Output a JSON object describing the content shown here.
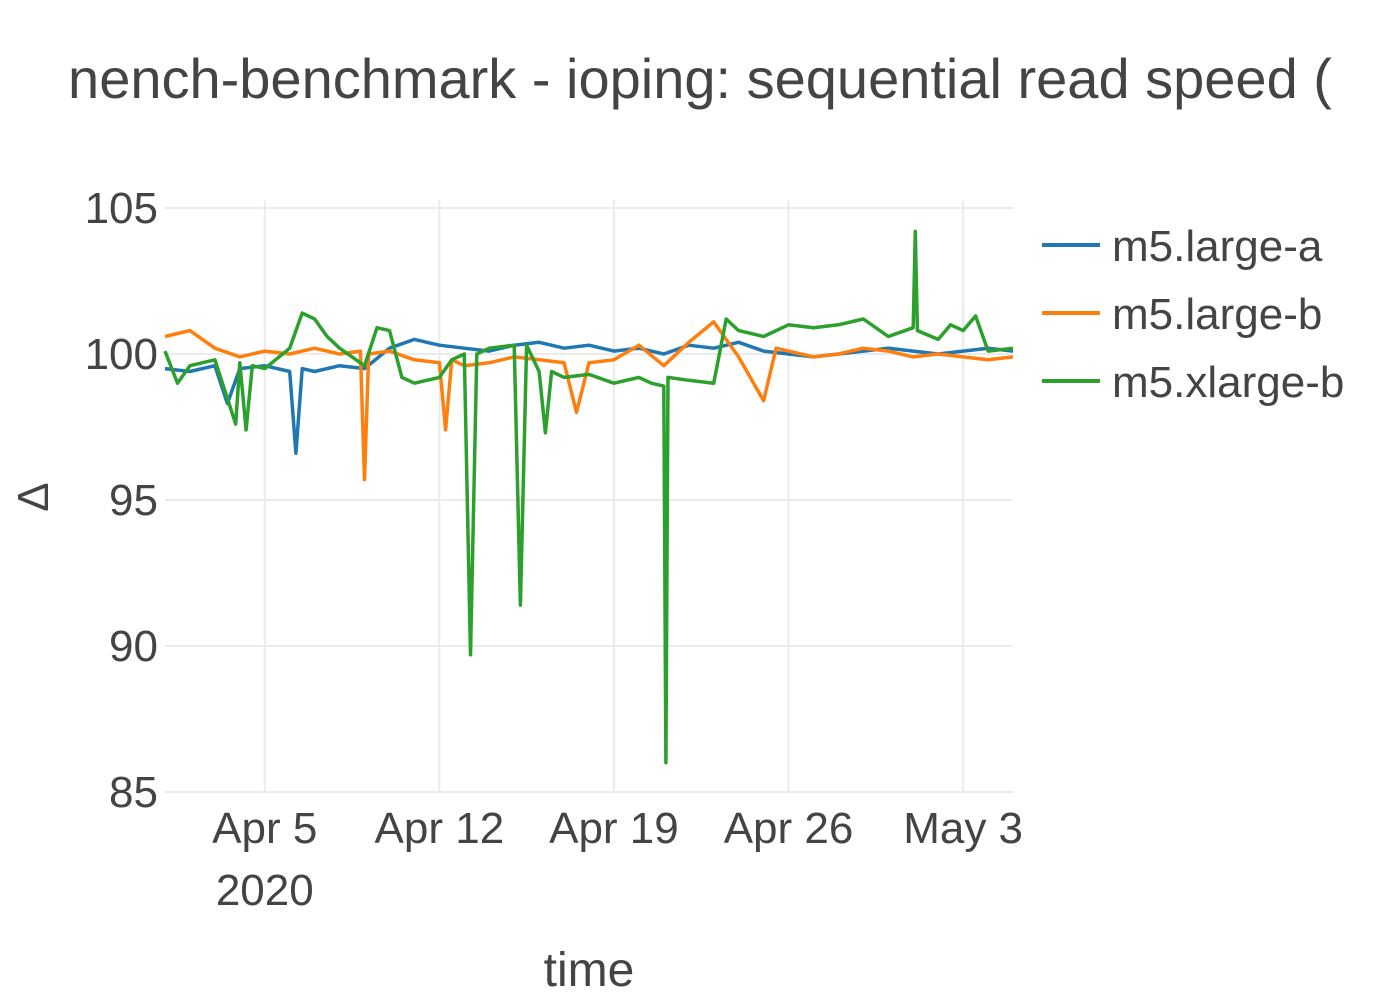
{
  "chart_data": {
    "type": "line",
    "title": "nench-benchmark - ioping: sequential read speed (",
    "xlabel": "time",
    "ylabel": "Δ",
    "x_range": [
      "2020-04-01",
      "2020-05-05"
    ],
    "ylim": [
      85,
      105
    ],
    "yticks": [
      85,
      90,
      95,
      100,
      105
    ],
    "xticks": [
      {
        "date": "2020-04-05",
        "label": "Apr 5",
        "sublabel": "2020"
      },
      {
        "date": "2020-04-12",
        "label": "Apr 12",
        "sublabel": ""
      },
      {
        "date": "2020-04-19",
        "label": "Apr 19",
        "sublabel": ""
      },
      {
        "date": "2020-04-26",
        "label": "Apr 26",
        "sublabel": ""
      },
      {
        "date": "2020-05-03",
        "label": "May 3",
        "sublabel": ""
      }
    ],
    "grid": true,
    "legend_position": "right",
    "series": [
      {
        "name": "m5.large-a",
        "color": "#1f77b4",
        "points": [
          [
            "2020-04-01",
            99.5
          ],
          [
            "2020-04-02",
            99.4
          ],
          [
            "2020-04-03",
            99.6
          ],
          [
            "2020-04-03 12:00",
            98.3
          ],
          [
            "2020-04-04",
            99.5
          ],
          [
            "2020-04-05",
            99.6
          ],
          [
            "2020-04-06",
            99.4
          ],
          [
            "2020-04-06 06:00",
            96.6
          ],
          [
            "2020-04-06 12:00",
            99.5
          ],
          [
            "2020-04-07",
            99.4
          ],
          [
            "2020-04-08",
            99.6
          ],
          [
            "2020-04-09",
            99.5
          ],
          [
            "2020-04-10",
            100.2
          ],
          [
            "2020-04-11",
            100.5
          ],
          [
            "2020-04-12",
            100.3
          ],
          [
            "2020-04-13",
            100.2
          ],
          [
            "2020-04-14",
            100.1
          ],
          [
            "2020-04-15",
            100.3
          ],
          [
            "2020-04-16",
            100.4
          ],
          [
            "2020-04-17",
            100.2
          ],
          [
            "2020-04-18",
            100.3
          ],
          [
            "2020-04-19",
            100.1
          ],
          [
            "2020-04-20",
            100.2
          ],
          [
            "2020-04-21",
            100.0
          ],
          [
            "2020-04-22",
            100.3
          ],
          [
            "2020-04-23",
            100.2
          ],
          [
            "2020-04-24",
            100.4
          ],
          [
            "2020-04-25",
            100.1
          ],
          [
            "2020-04-26",
            100.0
          ],
          [
            "2020-04-27",
            99.9
          ],
          [
            "2020-04-28",
            100.0
          ],
          [
            "2020-04-29",
            100.1
          ],
          [
            "2020-04-30",
            100.2
          ],
          [
            "2020-05-01",
            100.1
          ],
          [
            "2020-05-02",
            100.0
          ],
          [
            "2020-05-03",
            100.1
          ],
          [
            "2020-05-04",
            100.2
          ],
          [
            "2020-05-05",
            100.1
          ]
        ]
      },
      {
        "name": "m5.large-b",
        "color": "#ff7f0e",
        "points": [
          [
            "2020-04-01",
            100.6
          ],
          [
            "2020-04-02",
            100.8
          ],
          [
            "2020-04-03",
            100.2
          ],
          [
            "2020-04-04",
            99.9
          ],
          [
            "2020-04-05",
            100.1
          ],
          [
            "2020-04-06",
            100.0
          ],
          [
            "2020-04-07",
            100.2
          ],
          [
            "2020-04-08",
            100.0
          ],
          [
            "2020-04-08 20:00",
            100.1
          ],
          [
            "2020-04-09",
            95.7
          ],
          [
            "2020-04-09 04:00",
            100.0
          ],
          [
            "2020-04-10",
            100.1
          ],
          [
            "2020-04-11",
            99.8
          ],
          [
            "2020-04-12",
            99.7
          ],
          [
            "2020-04-12 06:00",
            97.4
          ],
          [
            "2020-04-12 12:00",
            99.8
          ],
          [
            "2020-04-13",
            99.6
          ],
          [
            "2020-04-14",
            99.7
          ],
          [
            "2020-04-15",
            99.9
          ],
          [
            "2020-04-16",
            99.8
          ],
          [
            "2020-04-17",
            99.7
          ],
          [
            "2020-04-17 12:00",
            98.0
          ],
          [
            "2020-04-18",
            99.7
          ],
          [
            "2020-04-19",
            99.8
          ],
          [
            "2020-04-20",
            100.3
          ],
          [
            "2020-04-21",
            99.6
          ],
          [
            "2020-04-22",
            100.4
          ],
          [
            "2020-04-23",
            101.1
          ],
          [
            "2020-04-24",
            99.9
          ],
          [
            "2020-04-25",
            98.4
          ],
          [
            "2020-04-25 12:00",
            100.2
          ],
          [
            "2020-04-26",
            100.1
          ],
          [
            "2020-04-27",
            99.9
          ],
          [
            "2020-04-28",
            100.0
          ],
          [
            "2020-04-29",
            100.2
          ],
          [
            "2020-04-30",
            100.1
          ],
          [
            "2020-05-01",
            99.9
          ],
          [
            "2020-05-02",
            100.0
          ],
          [
            "2020-05-03",
            99.9
          ],
          [
            "2020-05-04",
            99.8
          ],
          [
            "2020-05-05",
            99.9
          ]
        ]
      },
      {
        "name": "m5.xlarge-b",
        "color": "#2ca02c",
        "points": [
          [
            "2020-04-01",
            100.1
          ],
          [
            "2020-04-01 12:00",
            99.0
          ],
          [
            "2020-04-02",
            99.6
          ],
          [
            "2020-04-03",
            99.8
          ],
          [
            "2020-04-03 20:00",
            97.6
          ],
          [
            "2020-04-04",
            99.7
          ],
          [
            "2020-04-04 06:00",
            97.4
          ],
          [
            "2020-04-04 12:00",
            99.6
          ],
          [
            "2020-04-05",
            99.5
          ],
          [
            "2020-04-06",
            100.2
          ],
          [
            "2020-04-06 12:00",
            101.4
          ],
          [
            "2020-04-07",
            101.2
          ],
          [
            "2020-04-07 12:00",
            100.6
          ],
          [
            "2020-04-08",
            100.2
          ],
          [
            "2020-04-09",
            99.6
          ],
          [
            "2020-04-09 12:00",
            100.9
          ],
          [
            "2020-04-10",
            100.8
          ],
          [
            "2020-04-10 12:00",
            99.2
          ],
          [
            "2020-04-11",
            99.0
          ],
          [
            "2020-04-12",
            99.2
          ],
          [
            "2020-04-12 12:00",
            99.8
          ],
          [
            "2020-04-13",
            100.0
          ],
          [
            "2020-04-13 06:00",
            89.7
          ],
          [
            "2020-04-13 12:00",
            100.0
          ],
          [
            "2020-04-14",
            100.2
          ],
          [
            "2020-04-15",
            100.3
          ],
          [
            "2020-04-15 06:00",
            91.4
          ],
          [
            "2020-04-15 12:00",
            100.3
          ],
          [
            "2020-04-16",
            99.4
          ],
          [
            "2020-04-16 06:00",
            97.3
          ],
          [
            "2020-04-16 12:00",
            99.4
          ],
          [
            "2020-04-17",
            99.2
          ],
          [
            "2020-04-18",
            99.3
          ],
          [
            "2020-04-19",
            99.0
          ],
          [
            "2020-04-20",
            99.2
          ],
          [
            "2020-04-20 12:00",
            99.0
          ],
          [
            "2020-04-21",
            98.9
          ],
          [
            "2020-04-21 02:00",
            86.0
          ],
          [
            "2020-04-21 04:00",
            99.2
          ],
          [
            "2020-04-22",
            99.1
          ],
          [
            "2020-04-23",
            99.0
          ],
          [
            "2020-04-23 12:00",
            101.2
          ],
          [
            "2020-04-24",
            100.8
          ],
          [
            "2020-04-25",
            100.6
          ],
          [
            "2020-04-26",
            101.0
          ],
          [
            "2020-04-27",
            100.9
          ],
          [
            "2020-04-28",
            101.0
          ],
          [
            "2020-04-29",
            101.2
          ],
          [
            "2020-04-30",
            100.6
          ],
          [
            "2020-05-01",
            100.9
          ],
          [
            "2020-05-01 02:00",
            104.2
          ],
          [
            "2020-05-01 04:00",
            100.8
          ],
          [
            "2020-05-02",
            100.5
          ],
          [
            "2020-05-02 12:00",
            101.0
          ],
          [
            "2020-05-03",
            100.8
          ],
          [
            "2020-05-03 12:00",
            101.3
          ],
          [
            "2020-05-04",
            100.1
          ],
          [
            "2020-05-05",
            100.2
          ]
        ]
      }
    ]
  }
}
